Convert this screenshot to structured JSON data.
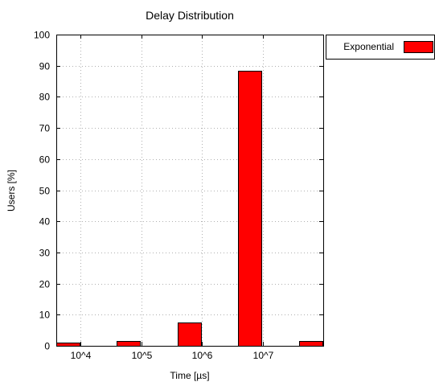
{
  "chart_data": {
    "type": "bar",
    "title": "Delay Distribution",
    "xlabel": "Time [µs]",
    "ylabel": "Users [%]",
    "ylim": [
      0,
      100
    ],
    "yticks": [
      0,
      10,
      20,
      30,
      40,
      50,
      60,
      70,
      80,
      90,
      100
    ],
    "x_scale": "log",
    "x_ticks": [
      {
        "label": "10^4",
        "value": 10000
      },
      {
        "label": "10^5",
        "value": 100000
      },
      {
        "label": "10^6",
        "value": 1000000
      },
      {
        "label": "10^7",
        "value": 10000000
      }
    ],
    "grid": true,
    "legend": "top-right, outside plot",
    "series": [
      {
        "name": "Exponential",
        "color": "#ff0000",
        "bin_log10_starts": [
          3.6,
          4.6,
          5.6,
          6.6,
          7.6
        ],
        "values": [
          1,
          1.5,
          7.5,
          88.5,
          1.5
        ]
      }
    ]
  }
}
